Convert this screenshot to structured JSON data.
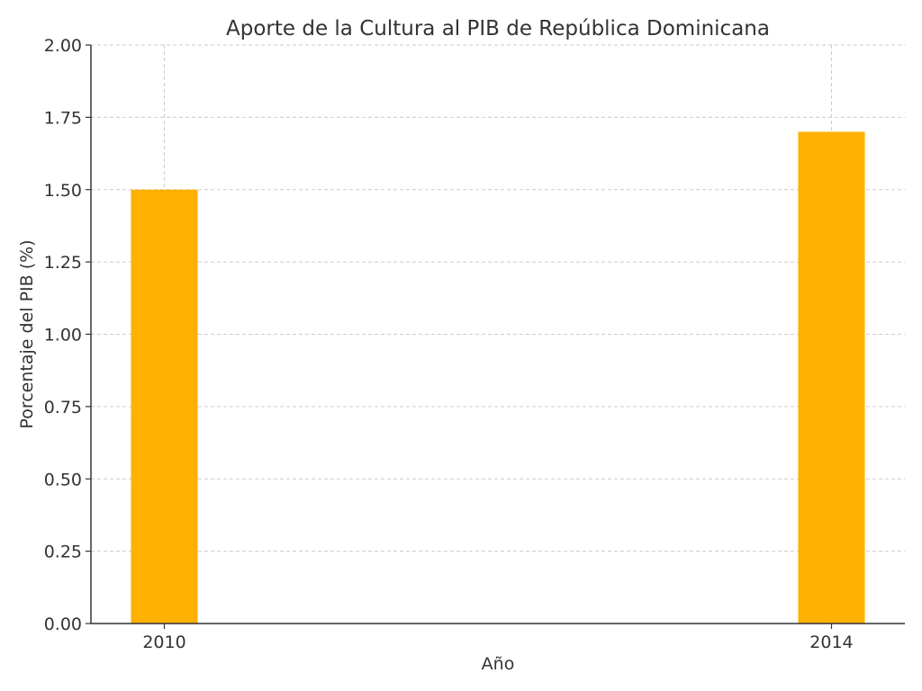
{
  "chart_data": {
    "type": "bar",
    "title": "Aporte de la Cultura al PIB de República Dominicana",
    "xlabel": "Año",
    "ylabel": "Porcentaje del PIB (%)",
    "categories": [
      "2010",
      "2014"
    ],
    "x": [
      2010,
      2014
    ],
    "values": [
      1.5,
      1.7
    ],
    "xlim": [
      2009.56,
      2014.44
    ],
    "ylim": [
      0,
      2.0
    ],
    "yticks": [
      "0.00",
      "0.25",
      "0.50",
      "0.75",
      "1.00",
      "1.25",
      "1.50",
      "1.75",
      "2.00"
    ],
    "xticks": [
      "2010",
      "2014"
    ],
    "grid": true,
    "colors": {
      "bar": "#FFB000",
      "grid": "#cccccc",
      "axis": "#333333",
      "text": "#333333"
    }
  }
}
